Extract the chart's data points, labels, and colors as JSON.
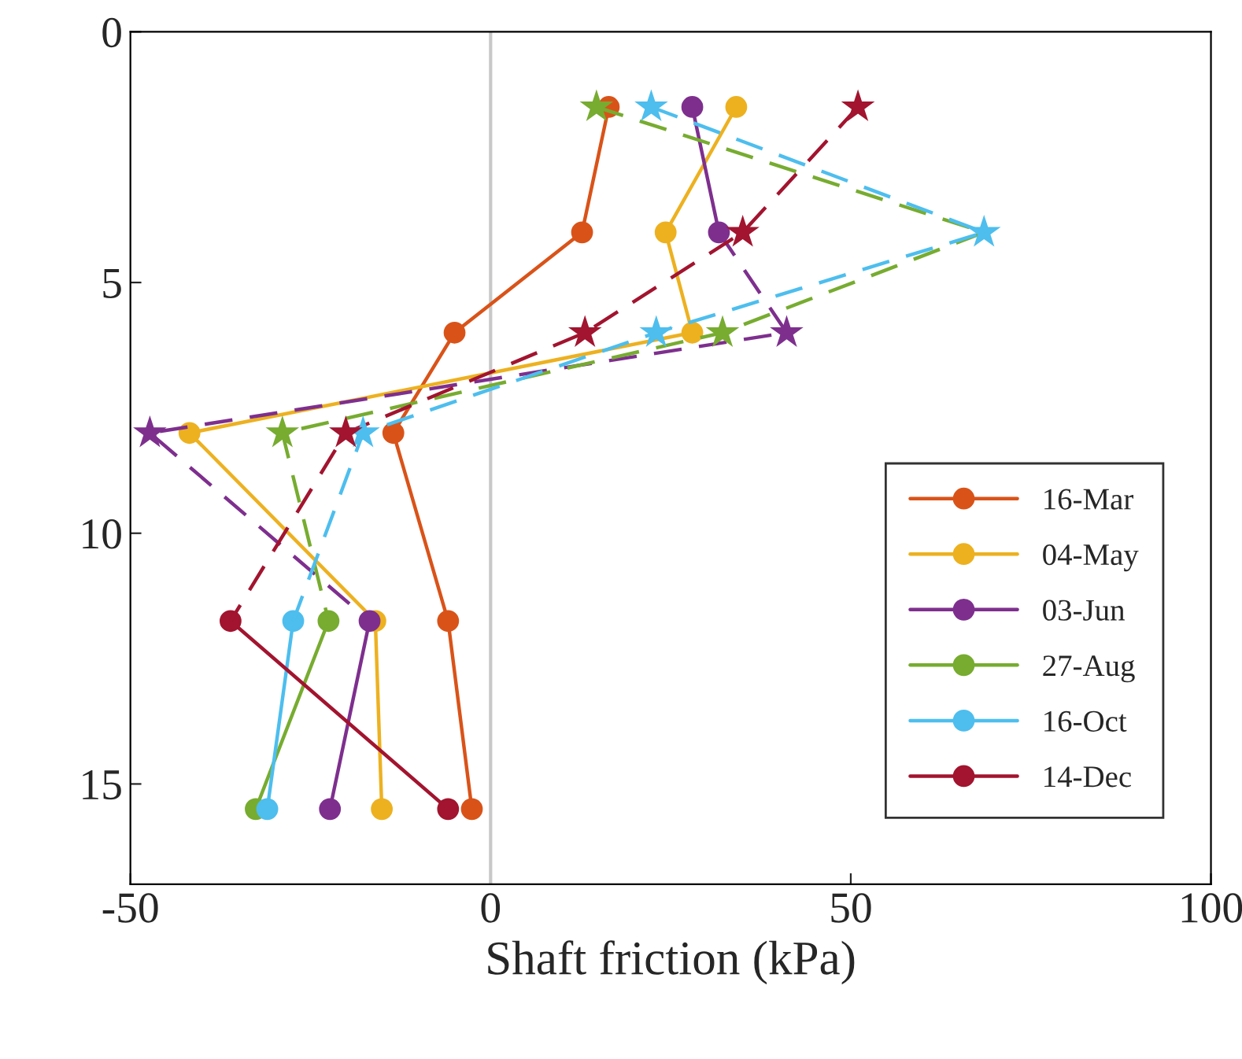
{
  "chart_data": {
    "type": "line",
    "orientation": "horizontal",
    "xlabel": "Shaft friction (kPa)",
    "x": [
      1.5,
      4,
      6,
      8,
      11.75,
      15.5
    ],
    "xlim": [
      -50,
      100
    ],
    "xticks": [
      -50,
      0,
      50,
      100
    ],
    "ylim": [
      17,
      0
    ],
    "yticks": [
      0,
      5,
      10,
      15
    ],
    "grid": false,
    "legend": "bottom right",
    "ref_lines": [
      {
        "axis": "x",
        "value": 0,
        "color": "#c8c8c8"
      }
    ],
    "series": [
      {
        "name": "16-Mar",
        "color": "#d95319",
        "marker": "circle",
        "line_style": "solid",
        "values": [
          16.4,
          12.7,
          -5,
          -13.5,
          -5.9,
          -2.6
        ]
      },
      {
        "name": "04-May",
        "color": "#edb120",
        "marker": "circle",
        "line_style": "solid",
        "values": [
          34.1,
          24.3,
          28,
          -41.8,
          -16,
          -15.1
        ]
      },
      {
        "name": "03-Jun",
        "color": "#7e2f8e",
        "marker": "circle",
        "line_style": "solid",
        "values": [
          28,
          31.7,
          null,
          null,
          -16.8,
          -22.3
        ]
      },
      {
        "name": "27-Aug",
        "color": "#77ac30",
        "marker": "circle",
        "line_style": "solid",
        "values": [
          null,
          null,
          null,
          null,
          -22.5,
          -32.6
        ]
      },
      {
        "name": "16-Oct",
        "color": "#4dbeee",
        "marker": "circle",
        "line_style": "solid",
        "values": [
          null,
          null,
          null,
          null,
          -27.4,
          -31
        ]
      },
      {
        "name": "14-Dec",
        "color": "#a2142f",
        "marker": "circle",
        "line_style": "solid",
        "values": [
          null,
          null,
          null,
          null,
          -36.1,
          -5.9
        ]
      },
      {
        "color": "#7e2f8e",
        "marker": "none",
        "line_style": "dashed",
        "values": [
          null,
          31.7,
          41.1,
          -47.3,
          -16.8,
          null
        ]
      },
      {
        "color": "#77ac30",
        "marker": "none",
        "line_style": "dashed",
        "values": [
          14.7,
          68.5,
          32.2,
          -28.9,
          -22.5,
          null
        ]
      },
      {
        "color": "#4dbeee",
        "marker": "none",
        "line_style": "dashed",
        "values": [
          22.3,
          68.5,
          23,
          -17.7,
          -27.4,
          null
        ]
      },
      {
        "color": "#a2142f",
        "marker": "none",
        "line_style": "dashed",
        "values": [
          51,
          35,
          13.1,
          -20.1,
          -36.1,
          null
        ]
      },
      {
        "type": "scatter",
        "color": "#7e2f8e",
        "marker": "star",
        "values": [
          null,
          null,
          41.1,
          -47.3,
          null,
          null
        ]
      },
      {
        "type": "scatter",
        "color": "#77ac30",
        "marker": "star",
        "values": [
          14.7,
          null,
          32.2,
          -28.9,
          null,
          null
        ]
      },
      {
        "type": "scatter",
        "color": "#4dbeee",
        "marker": "star",
        "values": [
          22.3,
          68.5,
          23,
          -17.7,
          null,
          null
        ]
      },
      {
        "type": "scatter",
        "color": "#a2142f",
        "marker": "star",
        "values": [
          51,
          35,
          13.1,
          -20.1,
          null,
          null
        ]
      }
    ]
  }
}
